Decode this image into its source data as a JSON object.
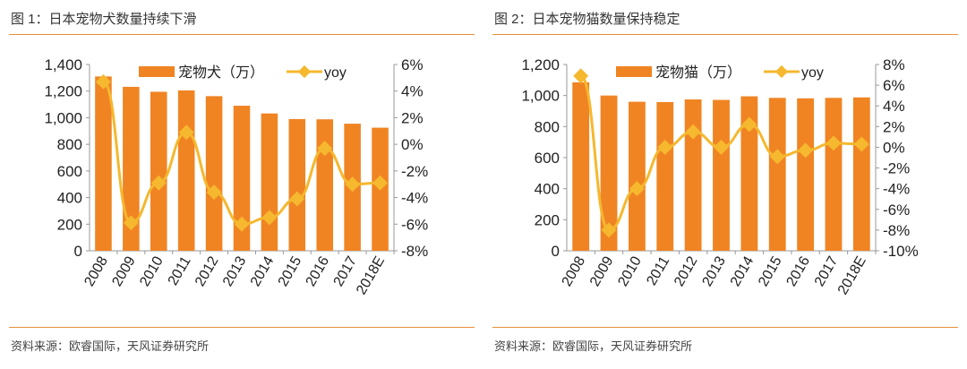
{
  "chart_data": [
    {
      "type": "bar+line",
      "title": "图 1：日本宠物犬数量持续下滑",
      "source": "资料来源：欧睿国际，天风证券研究所",
      "categories": [
        "2008",
        "2009",
        "2010",
        "2011",
        "2012",
        "2013",
        "2014",
        "2015",
        "2016",
        "2017",
        "2018E"
      ],
      "series": [
        {
          "name": "宠物犬（万）",
          "type": "bar",
          "axis": "left",
          "values": [
            1310,
            1232,
            1195,
            1205,
            1162,
            1090,
            1032,
            990,
            988,
            955,
            925
          ]
        },
        {
          "name": "yoy",
          "type": "line",
          "axis": "right",
          "values": [
            4.7,
            -5.9,
            -2.9,
            0.9,
            -3.6,
            -6.0,
            -5.5,
            -4.1,
            -0.3,
            -3.0,
            -2.9
          ]
        }
      ],
      "ylim": [
        0,
        1400
      ],
      "yticks": [
        "0",
        "200",
        "400",
        "600",
        "800",
        "1,000",
        "1,200",
        "1,400"
      ],
      "y2lim": [
        -8,
        6
      ],
      "y2ticks": [
        "-8%",
        "-6%",
        "-4%",
        "-2%",
        "0%",
        "2%",
        "4%",
        "6%"
      ],
      "legend": "top"
    },
    {
      "type": "bar+line",
      "title": "图 2：日本宠物猫数量保持稳定",
      "source": "资料来源：欧睿国际，天风证券研究所",
      "categories": [
        "2008",
        "2009",
        "2010",
        "2011",
        "2012",
        "2013",
        "2014",
        "2015",
        "2016",
        "2017",
        "2018E"
      ],
      "series": [
        {
          "name": "宠物猫（万）",
          "type": "bar",
          "axis": "left",
          "values": [
            1085,
            1000,
            960,
            958,
            975,
            972,
            995,
            985,
            982,
            985,
            988
          ]
        },
        {
          "name": "yoy",
          "type": "line",
          "axis": "right",
          "values": [
            6.9,
            -8.0,
            -4.0,
            0.0,
            1.5,
            0.0,
            2.2,
            -0.9,
            -0.3,
            0.4,
            0.3
          ]
        }
      ],
      "ylim": [
        0,
        1200
      ],
      "yticks": [
        "0",
        "200",
        "400",
        "600",
        "800",
        "1,000",
        "1,200"
      ],
      "y2lim": [
        -10,
        8
      ],
      "y2ticks": [
        "-10%",
        "-8%",
        "-6%",
        "-4%",
        "-2%",
        "0%",
        "2%",
        "4%",
        "6%",
        "8%"
      ],
      "legend": "top"
    }
  ],
  "colors": {
    "bar": "#f08423",
    "line": "#f5b82e",
    "rule": "#e8913a"
  }
}
